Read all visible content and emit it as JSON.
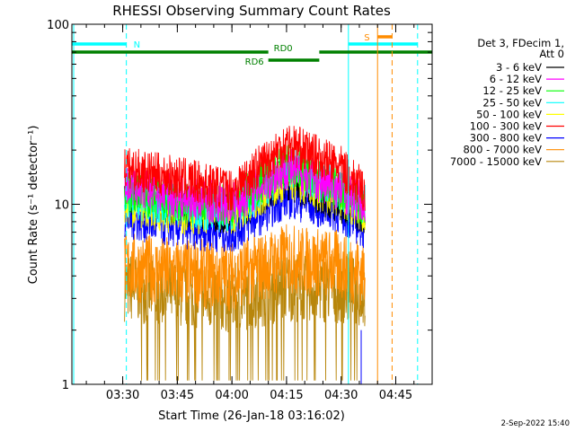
{
  "chart_data": {
    "type": "line",
    "title": "RHESSI Observing Summary Count Rates",
    "xlabel": "Start Time (26-Jan-18 03:16:02)",
    "ylabel": "Count Rate (s⁻¹ detector⁻¹)",
    "yscale": "log",
    "ylim": [
      1,
      100
    ],
    "xlim": [
      "03:16",
      "04:55"
    ],
    "x_ticks": [
      "03:30",
      "03:45",
      "04:00",
      "04:15",
      "04:30",
      "04:45"
    ],
    "y_ticks": [
      "1",
      "10",
      "100"
    ],
    "grid": false,
    "legend": {
      "placement": "right",
      "header": [
        "Det 3, FDecim 1,",
        "Att 0"
      ]
    },
    "series": [
      {
        "name": "3 - 6 keV",
        "color": "#000000",
        "x": [
          "03:30",
          "03:45",
          "04:00",
          "04:15",
          "04:30",
          "04:36"
        ],
        "values": [
          11,
          10,
          9,
          14,
          10,
          9
        ]
      },
      {
        "name": "6 - 12 keV",
        "color": "#ff00ff",
        "x": [
          "03:30",
          "03:45",
          "04:00",
          "04:15",
          "04:30",
          "04:36"
        ],
        "values": [
          13,
          11,
          10,
          16,
          12,
          10
        ]
      },
      {
        "name": "12 - 25 keV",
        "color": "#00ff00",
        "x": [
          "03:30",
          "03:45",
          "04:00",
          "04:15",
          "04:30",
          "04:36"
        ],
        "values": [
          12,
          10,
          10,
          17,
          12,
          10
        ]
      },
      {
        "name": "25 - 50 keV",
        "color": "#00ffff",
        "x": [
          "03:30",
          "03:45",
          "04:00",
          "04:15",
          "04:30",
          "04:36"
        ],
        "values": [
          11,
          10,
          9,
          16,
          12,
          10
        ]
      },
      {
        "name": "50 - 100 keV",
        "color": "#ffff00",
        "x": [
          "03:30",
          "03:45",
          "04:00",
          "04:15",
          "04:30",
          "04:36"
        ],
        "values": [
          10,
          9,
          9,
          14,
          11,
          9
        ]
      },
      {
        "name": "100 - 300 keV",
        "color": "#ff0000",
        "x": [
          "03:30",
          "03:45",
          "04:00",
          "04:15",
          "04:30",
          "04:36"
        ],
        "values": [
          16,
          14,
          12,
          22,
          16,
          12
        ]
      },
      {
        "name": "300 - 800 keV",
        "color": "#0000ff",
        "x": [
          "03:30",
          "03:45",
          "04:00",
          "04:15",
          "04:30",
          "04:36"
        ],
        "values": [
          8.5,
          7.5,
          7,
          11,
          9,
          7.5
        ]
      },
      {
        "name": "800 - 7000 keV",
        "color": "#ff8c00",
        "x": [
          "03:30",
          "03:45",
          "04:00",
          "04:15",
          "04:30",
          "04:36"
        ],
        "values": [
          4.5,
          4.2,
          4,
          5,
          4.6,
          4.2
        ]
      },
      {
        "name": "7000 - 15000 keV",
        "color": "#b8860b",
        "x": [
          "03:30",
          "03:45",
          "04:00",
          "04:15",
          "04:30",
          "04:36"
        ],
        "values": [
          3.5,
          3.2,
          3,
          3.5,
          3.4,
          3.2
        ]
      }
    ],
    "annotations": [
      {
        "label": "N",
        "color": "#00ffff"
      },
      {
        "label": "RD0",
        "color": "#008000"
      },
      {
        "label": "RD6",
        "color": "#008000"
      },
      {
        "label": "S",
        "color": "#ff8c00"
      }
    ]
  },
  "footer": {
    "timestamp": "2-Sep-2022 15:40"
  },
  "colors": {
    "N": "#00ffff",
    "RD": "#008000",
    "S": "#ff8c00"
  }
}
